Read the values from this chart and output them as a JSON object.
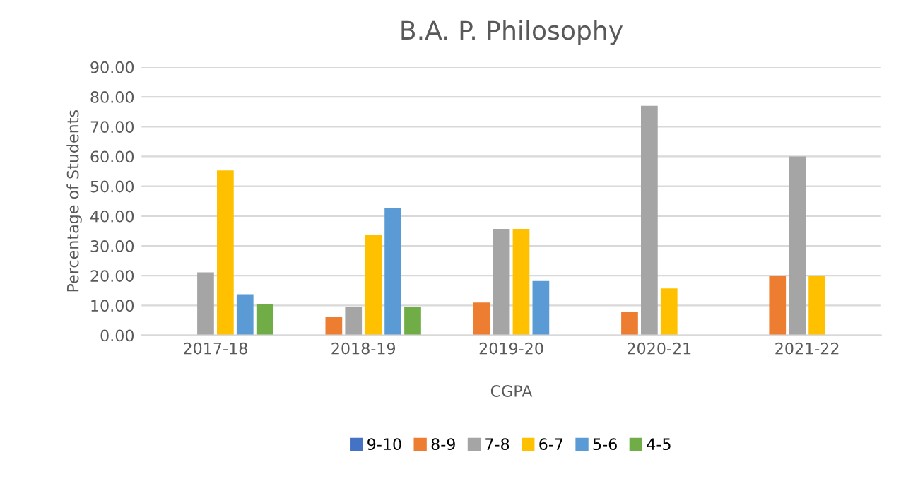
{
  "chart_data": {
    "type": "bar",
    "title": "B.A. P. Philosophy",
    "xlabel": "CGPA",
    "ylabel": "Percentage of Students",
    "categories": [
      "2017-18",
      "2018-19",
      "2019-20",
      "2020-21",
      "2021-22"
    ],
    "series": [
      {
        "name": "9-10",
        "color": "#4472c4",
        "values": [
          null,
          null,
          null,
          null,
          null
        ]
      },
      {
        "name": "8-9",
        "color": "#ed7d31",
        "values": [
          null,
          6.2,
          11.0,
          7.9,
          20.0
        ]
      },
      {
        "name": "7-8",
        "color": "#a5a5a5",
        "values": [
          21.1,
          9.4,
          35.7,
          77.0,
          60.0
        ]
      },
      {
        "name": "6-7",
        "color": "#ffc000",
        "values": [
          55.3,
          33.7,
          35.7,
          15.7,
          20.0
        ]
      },
      {
        "name": "5-6",
        "color": "#5b9bd5",
        "values": [
          13.8,
          42.6,
          18.2,
          null,
          null
        ]
      },
      {
        "name": "4-5",
        "color": "#70ad47",
        "values": [
          10.5,
          9.4,
          null,
          null,
          null
        ]
      }
    ],
    "ylim": [
      0,
      90
    ],
    "yticks": [
      {
        "value": 0,
        "label": "0.00"
      },
      {
        "value": 10,
        "label": "10.00"
      },
      {
        "value": 20,
        "label": "20.00"
      },
      {
        "value": 30,
        "label": "30.00"
      },
      {
        "value": 40,
        "label": "40.00"
      },
      {
        "value": 50,
        "label": "50.00"
      },
      {
        "value": 60,
        "label": "60.00"
      },
      {
        "value": 70,
        "label": "70.00"
      },
      {
        "value": 80,
        "label": "80.00"
      },
      {
        "value": 90,
        "label": "90.00"
      }
    ],
    "grid": "y",
    "legend": "bottom"
  }
}
